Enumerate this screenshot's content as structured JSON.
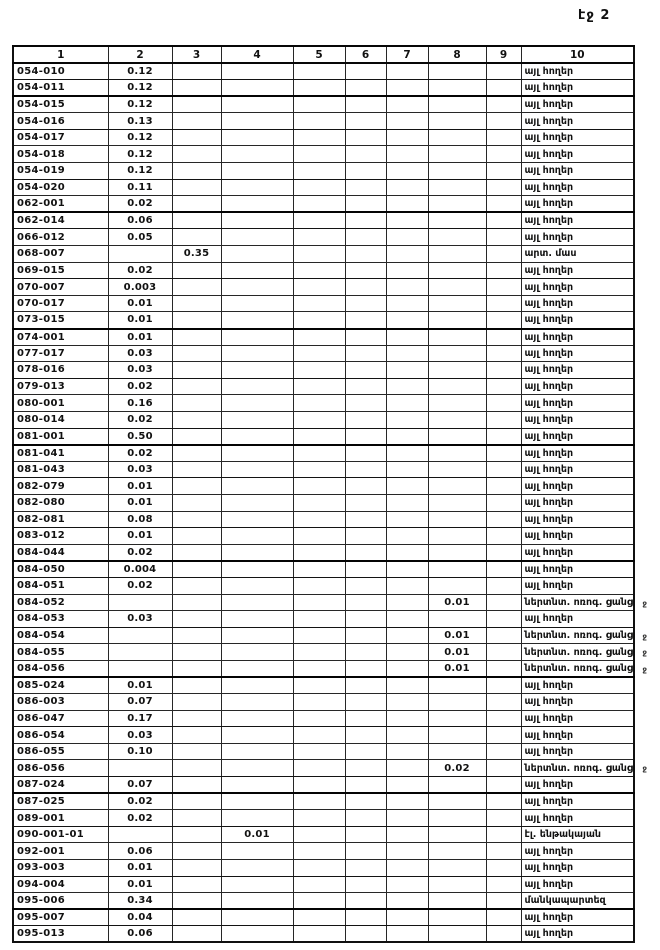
{
  "page": {
    "number_label": "էջ 2"
  },
  "labels": {
    "overflow_mark": "ջ"
  },
  "table": {
    "headers": [
      "1",
      "2",
      "3",
      "4",
      "5",
      "6",
      "7",
      "8",
      "9",
      "10"
    ],
    "rows": [
      {
        "code": "054-010",
        "values": {
          "2": "0.12"
        },
        "land_use": "այլ հողեր"
      },
      {
        "code": "054-011",
        "values": {
          "2": "0.12"
        },
        "land_use": "այլ հողեր"
      },
      {
        "code": "054-015",
        "values": {
          "2": "0.12"
        },
        "land_use": "այլ հողեր"
      },
      {
        "code": "054-016",
        "values": {
          "2": "0.13"
        },
        "land_use": "այլ հողեր"
      },
      {
        "code": "054-017",
        "values": {
          "2": "0.12"
        },
        "land_use": "այլ հողեր"
      },
      {
        "code": "054-018",
        "values": {
          "2": "0.12"
        },
        "land_use": "այլ հողեր"
      },
      {
        "code": "054-019",
        "values": {
          "2": "0.12"
        },
        "land_use": "այլ հողեր"
      },
      {
        "code": "054-020",
        "values": {
          "2": "0.11"
        },
        "land_use": "այլ հողեր"
      },
      {
        "code": "062-001",
        "values": {
          "2": "0.02"
        },
        "land_use": "այլ հողեր"
      },
      {
        "code": "062-014",
        "values": {
          "2": "0.06"
        },
        "land_use": "այլ հողեր"
      },
      {
        "code": "066-012",
        "values": {
          "2": "0.05"
        },
        "land_use": "այլ հողեր"
      },
      {
        "code": "068-007",
        "values": {
          "3": "0.35"
        },
        "land_use": "արտ. մաս"
      },
      {
        "code": "069-015",
        "values": {
          "2": "0.02"
        },
        "land_use": "այլ հողեր"
      },
      {
        "code": "070-007",
        "values": {
          "2": "0.003"
        },
        "land_use": "այլ հողեր"
      },
      {
        "code": "070-017",
        "values": {
          "2": "0.01"
        },
        "land_use": "այլ հողեր"
      },
      {
        "code": "073-015",
        "values": {
          "2": "0.01"
        },
        "land_use": "այլ հողեր"
      },
      {
        "code": "074-001",
        "values": {
          "2": "0.01"
        },
        "land_use": "այլ հողեր"
      },
      {
        "code": "077-017",
        "values": {
          "2": "0.03"
        },
        "land_use": "այլ հողեր"
      },
      {
        "code": "078-016",
        "values": {
          "2": "0.03"
        },
        "land_use": "այլ հողեր"
      },
      {
        "code": "079-013",
        "values": {
          "2": "0.02"
        },
        "land_use": "այլ հողեր"
      },
      {
        "code": "080-001",
        "values": {
          "2": "0.16"
        },
        "land_use": "այլ հողեր"
      },
      {
        "code": "080-014",
        "values": {
          "2": "0.02"
        },
        "land_use": "այլ հողեր"
      },
      {
        "code": "081-001",
        "values": {
          "2": "0.50"
        },
        "land_use": "այլ հողեր"
      },
      {
        "code": "081-041",
        "values": {
          "2": "0.02"
        },
        "land_use": "այլ հողեր"
      },
      {
        "code": "081-043",
        "values": {
          "2": "0.03"
        },
        "land_use": "այլ հողեր"
      },
      {
        "code": "082-079",
        "values": {
          "2": "0.01"
        },
        "land_use": "այլ հողեր"
      },
      {
        "code": "082-080",
        "values": {
          "2": "0.01"
        },
        "land_use": "այլ հողեր"
      },
      {
        "code": "082-081",
        "values": {
          "2": "0.08"
        },
        "land_use": "այլ հողեր"
      },
      {
        "code": "083-012",
        "values": {
          "2": "0.01"
        },
        "land_use": "այլ հողեր"
      },
      {
        "code": "084-044",
        "values": {
          "2": "0.02"
        },
        "land_use": "այլ հողեր"
      },
      {
        "code": "084-050",
        "values": {
          "2": "0.004"
        },
        "land_use": "այլ հողեր"
      },
      {
        "code": "084-051",
        "values": {
          "2": "0.02"
        },
        "land_use": "այլ հողեր"
      },
      {
        "code": "084-052",
        "values": {
          "8": "0.01"
        },
        "land_use": "ներտնտ. ոռոգ. ցանց",
        "mark": true
      },
      {
        "code": "084-053",
        "values": {
          "2": "0.03"
        },
        "land_use": "այլ հողեր"
      },
      {
        "code": "084-054",
        "values": {
          "8": "0.01"
        },
        "land_use": "ներտնտ. ոռոգ. ցանց",
        "mark": true
      },
      {
        "code": "084-055",
        "values": {
          "8": "0.01"
        },
        "land_use": "ներտնտ. ոռոգ. ցանց",
        "mark": true
      },
      {
        "code": "084-056",
        "values": {
          "8": "0.01"
        },
        "land_use": "ներտնտ. ոռոգ. ցանց",
        "mark": true
      },
      {
        "code": "085-024",
        "values": {
          "2": "0.01"
        },
        "land_use": "այլ հողեր"
      },
      {
        "code": "086-003",
        "values": {
          "2": "0.07"
        },
        "land_use": "այլ հողեր"
      },
      {
        "code": "086-047",
        "values": {
          "2": "0.17"
        },
        "land_use": "այլ հողեր"
      },
      {
        "code": "086-054",
        "values": {
          "2": "0.03"
        },
        "land_use": "այլ հողեր"
      },
      {
        "code": "086-055",
        "values": {
          "2": "0.10"
        },
        "land_use": "այլ հողեր"
      },
      {
        "code": "086-056",
        "values": {
          "8": "0.02"
        },
        "land_use": "ներտնտ. ոռոգ. ցանց",
        "mark": true
      },
      {
        "code": "087-024",
        "values": {
          "2": "0.07"
        },
        "land_use": "այլ հողեր"
      },
      {
        "code": "087-025",
        "values": {
          "2": "0.02"
        },
        "land_use": "այլ հողեր"
      },
      {
        "code": "089-001",
        "values": {
          "2": "0.02"
        },
        "land_use": "այլ հողեր"
      },
      {
        "code": "090-001-01",
        "values": {
          "4": "0.01"
        },
        "land_use": "էլ. ենթակայան"
      },
      {
        "code": "092-001",
        "values": {
          "2": "0.06"
        },
        "land_use": "այլ հողեր"
      },
      {
        "code": "093-003",
        "values": {
          "2": "0.01"
        },
        "land_use": "այլ հողեր"
      },
      {
        "code": "094-004",
        "values": {
          "2": "0.01"
        },
        "land_use": "այլ հողեր"
      },
      {
        "code": "095-006",
        "values": {
          "2": "0.34"
        },
        "land_use": "մանկապարտեզ"
      },
      {
        "code": "095-007",
        "values": {
          "2": "0.04"
        },
        "land_use": "այլ հողեր"
      },
      {
        "code": "095-013",
        "values": {
          "2": "0.06"
        },
        "land_use": "այլ հողեր"
      }
    ]
  }
}
